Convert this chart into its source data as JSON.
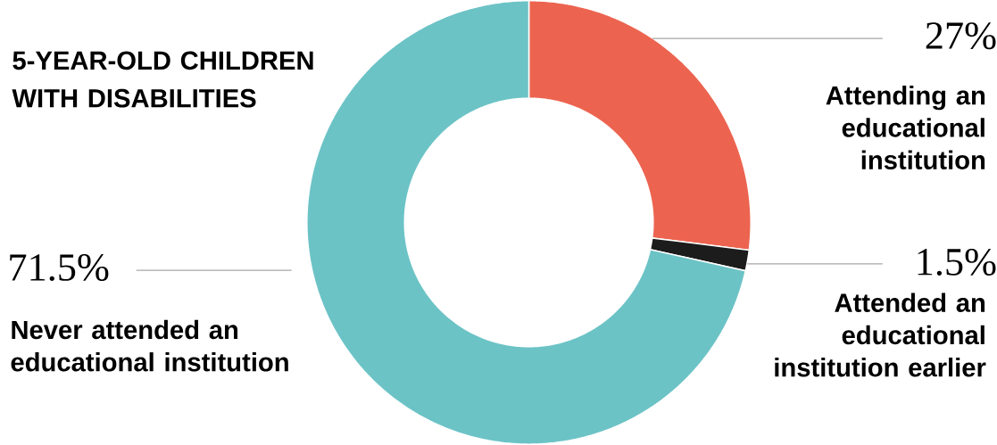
{
  "chart_data": {
    "type": "donut",
    "title": "5-YEAR-OLD CHILDREN WITH DISABILITIES",
    "categories": [
      "Attending an educational institution",
      "Attended an educational institution earlier",
      "Never attended an educational institution"
    ],
    "values": [
      27,
      1.5,
      71.5
    ],
    "colors": [
      "#ec6450",
      "#1c1c1c",
      "#6cc3c6"
    ],
    "value_labels": [
      "27%",
      "1.5%",
      "71.5%"
    ]
  }
}
